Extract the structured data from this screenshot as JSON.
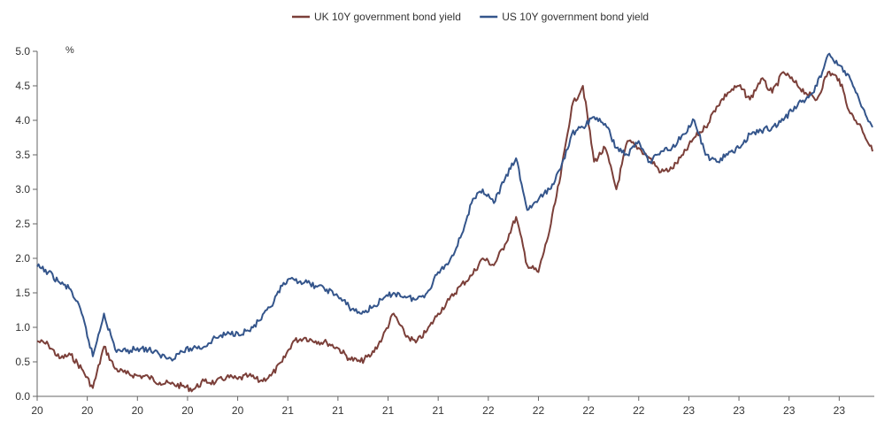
{
  "chart_data": {
    "type": "line",
    "title": "",
    "unit_label": "%",
    "xlabel": "",
    "ylabel": "",
    "legend_position": "top-center",
    "grid": false,
    "ylim": [
      0.0,
      5.0
    ],
    "yticks": [
      "0.0",
      "0.5",
      "1.0",
      "1.5",
      "2.0",
      "2.5",
      "3.0",
      "3.5",
      "4.0",
      "4.5",
      "5.0"
    ],
    "xticks": [
      "20",
      "20",
      "20",
      "20",
      "20",
      "21",
      "21",
      "21",
      "21",
      "22",
      "22",
      "22",
      "22",
      "23",
      "23",
      "23",
      "23"
    ],
    "series": [
      {
        "name": "UK 10Y government bond yield",
        "color": "#7b3f39",
        "values": [
          0.8,
          0.75,
          0.55,
          0.6,
          0.4,
          0.12,
          0.72,
          0.4,
          0.33,
          0.3,
          0.28,
          0.2,
          0.18,
          0.15,
          0.1,
          0.22,
          0.2,
          0.28,
          0.25,
          0.3,
          0.22,
          0.3,
          0.5,
          0.8,
          0.85,
          0.8,
          0.78,
          0.7,
          0.55,
          0.5,
          0.6,
          0.85,
          1.2,
          0.9,
          0.78,
          0.95,
          1.2,
          1.4,
          1.6,
          1.75,
          2.0,
          1.9,
          2.2,
          2.6,
          1.9,
          1.8,
          2.4,
          3.2,
          4.2,
          4.5,
          3.4,
          3.6,
          3.0,
          3.7,
          3.6,
          3.45,
          3.25,
          3.3,
          3.5,
          3.75,
          3.9,
          4.2,
          4.4,
          4.5,
          4.3,
          4.6,
          4.4,
          4.7,
          4.55,
          4.4,
          4.3,
          4.7,
          4.6,
          4.1,
          3.9,
          3.55
        ]
      },
      {
        "name": "US 10Y government bond yield",
        "color": "#34558b",
        "values": [
          1.88,
          1.8,
          1.65,
          1.55,
          1.2,
          0.58,
          1.2,
          0.68,
          0.65,
          0.7,
          0.68,
          0.6,
          0.55,
          0.65,
          0.7,
          0.72,
          0.85,
          0.9,
          0.92,
          0.95,
          1.1,
          1.3,
          1.6,
          1.7,
          1.65,
          1.6,
          1.55,
          1.45,
          1.3,
          1.2,
          1.28,
          1.4,
          1.5,
          1.45,
          1.4,
          1.5,
          1.8,
          1.95,
          2.3,
          2.8,
          3.0,
          2.8,
          3.15,
          3.45,
          2.7,
          2.85,
          3.0,
          3.3,
          3.8,
          3.9,
          4.05,
          3.95,
          3.6,
          3.5,
          3.7,
          3.4,
          3.55,
          3.6,
          3.8,
          4.0,
          3.5,
          3.4,
          3.5,
          3.6,
          3.8,
          3.85,
          3.9,
          4.0,
          4.2,
          4.3,
          4.5,
          4.95,
          4.8,
          4.6,
          4.2,
          3.9
        ]
      }
    ]
  }
}
